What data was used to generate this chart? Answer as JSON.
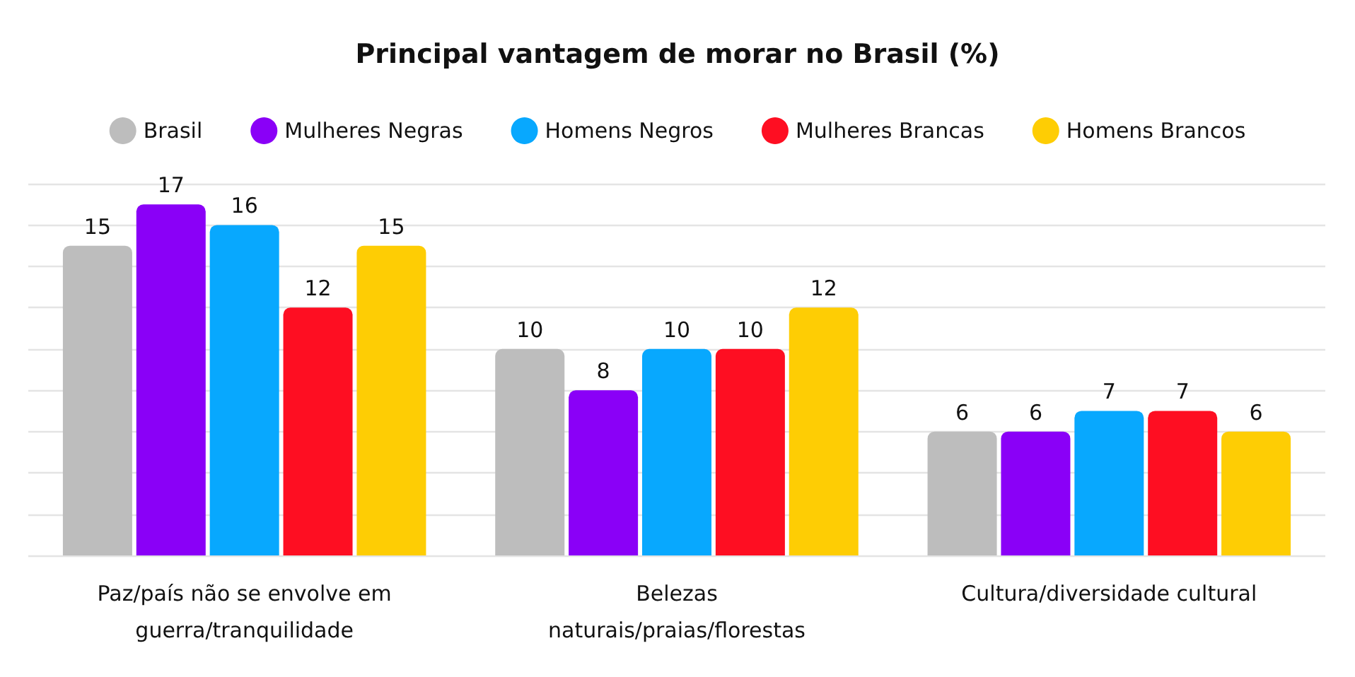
{
  "chart_data": {
    "type": "bar",
    "title": "Principal vantagem de morar no Brasil (%)",
    "categories": [
      "Paz/país não se envolve em guerra/tranquilidade",
      "Belezas naturais/praias/florestas",
      "Cultura/diversidade cultural"
    ],
    "series": [
      {
        "name": "Brasil",
        "color": "#bdbdbd",
        "values": [
          15,
          10,
          6
        ]
      },
      {
        "name": "Mulheres Negras",
        "color": "#8a00f7",
        "values": [
          17,
          8,
          6
        ]
      },
      {
        "name": "Homens Negros",
        "color": "#08a8fe",
        "values": [
          16,
          10,
          7
        ]
      },
      {
        "name": "Mulheres Brancas",
        "color": "#fe0e22",
        "values": [
          12,
          10,
          7
        ]
      },
      {
        "name": "Homens Brancos",
        "color": "#fecd04",
        "values": [
          15,
          12,
          6
        ]
      }
    ],
    "ylim": [
      0,
      18
    ],
    "yticks": [
      {
        "value": 0,
        "label": null
      },
      {
        "value": 2,
        "label": null
      },
      {
        "value": 4,
        "label": null
      },
      {
        "value": 6,
        "label": null
      },
      {
        "value": 8,
        "label": null
      },
      {
        "value": 10,
        "label": null
      },
      {
        "value": 12,
        "label": null
      },
      {
        "value": 14,
        "label": null
      },
      {
        "value": 16,
        "label": null
      },
      {
        "value": 18,
        "label": null
      }
    ],
    "grid": "y",
    "tick_labels": "x",
    "legend": "top",
    "data_labels": true
  }
}
